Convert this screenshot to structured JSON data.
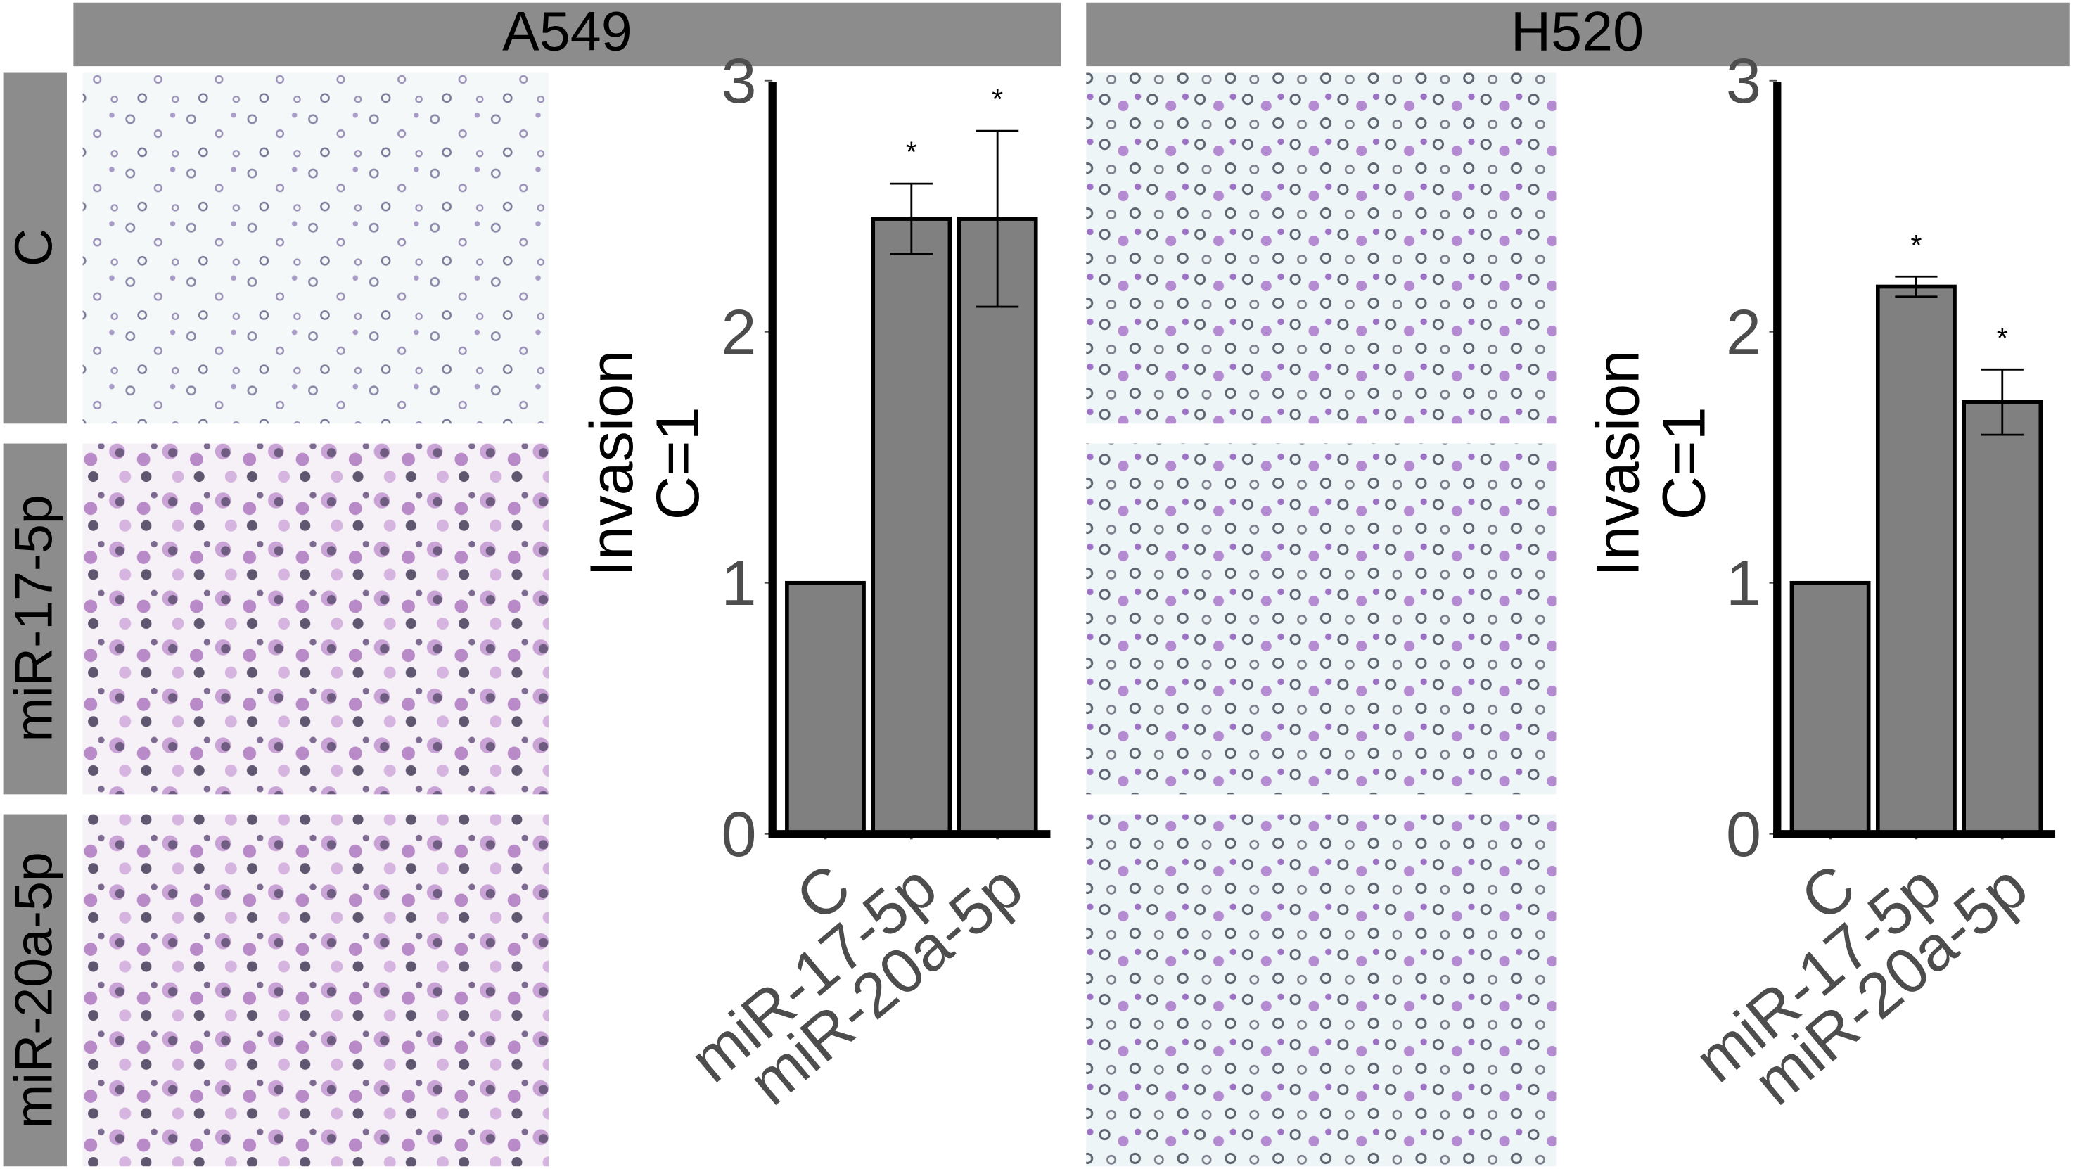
{
  "headers": [
    "A549",
    "H520"
  ],
  "row_labels": [
    "C",
    "miR-17-5p",
    "miR-20a-5p"
  ],
  "chart_data": [
    {
      "type": "bar",
      "ylabel_lines": [
        "Invasion",
        "C=1"
      ],
      "categories": [
        "C",
        "miR-17-5p",
        "miR-20a-5p"
      ],
      "values": [
        1,
        2.45,
        2.45
      ],
      "errors": [
        null,
        0.14,
        0.35
      ],
      "annotations": [
        null,
        "*",
        "*"
      ],
      "color": "#808080",
      "ylim": [
        0,
        3.1
      ],
      "yticks": [
        0,
        1,
        2,
        3
      ]
    },
    {
      "type": "bar",
      "ylabel_lines": [
        "Invasion",
        "C=1"
      ],
      "categories": [
        "C",
        "miR-17-5p",
        "miR-20a-5p"
      ],
      "values": [
        1,
        2.18,
        1.72
      ],
      "errors": [
        null,
        0.04,
        0.13
      ],
      "annotations": [
        null,
        "*",
        "*"
      ],
      "color": "#808080",
      "ylim": [
        0,
        3.1
      ],
      "yticks": [
        0,
        1,
        2,
        3
      ]
    }
  ]
}
